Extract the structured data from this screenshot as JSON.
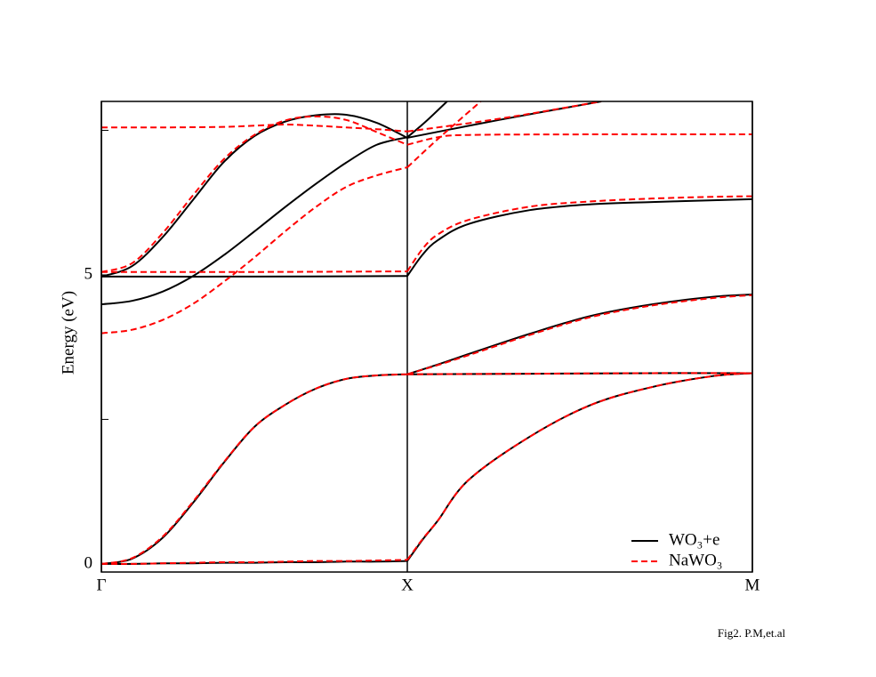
{
  "chart_data": {
    "type": "band-structure",
    "ylabel": "Energy (eV)",
    "annotation": "Fig2. P.M,et.al",
    "xlim": [
      0,
      2.128
    ],
    "ylim": [
      -0.14,
      8.0
    ],
    "yticks": [
      0,
      5
    ],
    "yminorticks": [
      2.5,
      7.5
    ],
    "xticks": [
      {
        "value": 0,
        "label": "Γ"
      },
      {
        "value": 1.0,
        "label": "X"
      },
      {
        "value": 2.128,
        "label": "M"
      }
    ],
    "legend": "lower right",
    "series": [
      {
        "name": "WO₃+e",
        "color": "#000000",
        "dashed": false,
        "bands": [
          {
            "x": [
              0,
              0.1,
              0.2,
              0.3,
              0.4,
              0.5,
              0.6,
              0.7,
              0.8,
              0.9,
              1.0
            ],
            "values": [
              0,
              0,
              0.01,
              0.01,
              0.02,
              0.02,
              0.03,
              0.03,
              0.04,
              0.04,
              0.05
            ]
          },
          {
            "x": [
              1.0,
              1.05,
              1.1,
              1.2,
              1.4,
              1.6,
              1.8,
              2.0,
              2.128
            ],
            "values": [
              0.05,
              0.42,
              0.75,
              1.45,
              2.2,
              2.75,
              3.06,
              3.25,
              3.3
            ]
          },
          {
            "x": [
              0,
              0.1,
              0.2,
              0.3,
              0.4,
              0.5,
              0.6,
              0.7,
              0.8,
              0.9,
              1.0
            ],
            "values": [
              0,
              0.09,
              0.45,
              1.06,
              1.75,
              2.37,
              2.75,
              3.03,
              3.2,
              3.26,
              3.28
            ]
          },
          {
            "x": [
              1.0,
              1.4,
              1.8,
              2.128
            ],
            "values": [
              3.28,
              3.29,
              3.3,
              3.3
            ]
          },
          {
            "x": [
              1.0,
              1.1,
              1.2,
              1.4,
              1.6,
              1.8,
              2.0,
              2.128
            ],
            "values": [
              3.28,
              3.45,
              3.63,
              3.98,
              4.29,
              4.49,
              4.62,
              4.66
            ]
          },
          {
            "x": [
              0,
              0.5,
              1.0
            ],
            "values": [
              4.97,
              4.97,
              4.98
            ]
          },
          {
            "x": [
              1.0,
              1.05,
              1.1,
              1.2,
              1.4,
              1.6,
              1.8,
              2.0,
              2.128
            ],
            "values": [
              4.98,
              5.35,
              5.6,
              5.88,
              6.12,
              6.22,
              6.26,
              6.29,
              6.31
            ]
          },
          {
            "x": [
              0,
              0.1,
              0.2,
              0.3,
              0.4,
              0.5,
              0.6,
              0.7,
              0.8,
              0.9,
              1.0
            ],
            "values": [
              4.49,
              4.55,
              4.71,
              4.98,
              5.34,
              5.75,
              6.17,
              6.57,
              6.94,
              7.25,
              7.38
            ]
          },
          {
            "x": [
              1.0,
              1.06,
              1.13
            ],
            "values": [
              7.38,
              7.65,
              8.0
            ]
          },
          {
            "x": [
              0,
              0.1,
              0.2,
              0.3,
              0.4,
              0.5,
              0.6,
              0.7,
              0.8,
              0.9,
              1.0
            ],
            "values": [
              4.97,
              5.15,
              5.65,
              6.3,
              6.95,
              7.4,
              7.65,
              7.76,
              7.77,
              7.63,
              7.37
            ]
          },
          {
            "x": [
              1.0,
              1.3,
              1.634
            ],
            "values": [
              7.37,
              7.68,
              8.0
            ]
          }
        ]
      },
      {
        "name": "NaWO₃",
        "color": "#ff0000",
        "dashed": true,
        "bands": [
          {
            "x": [
              0,
              0.1,
              0.2,
              0.3,
              0.4,
              0.5,
              0.6,
              0.7,
              0.8,
              0.9,
              1.0
            ],
            "values": [
              0,
              0,
              0.01,
              0.02,
              0.03,
              0.03,
              0.04,
              0.05,
              0.05,
              0.06,
              0.07
            ]
          },
          {
            "x": [
              1.0,
              1.05,
              1.1,
              1.2,
              1.4,
              1.6,
              1.8,
              2.0,
              2.128
            ],
            "values": [
              0.07,
              0.43,
              0.75,
              1.45,
              2.2,
              2.75,
              3.06,
              3.25,
              3.3
            ]
          },
          {
            "x": [
              0,
              0.1,
              0.2,
              0.3,
              0.4,
              0.5,
              0.6,
              0.7,
              0.8,
              0.9,
              1.0
            ],
            "values": [
              0,
              0.1,
              0.47,
              1.08,
              1.76,
              2.37,
              2.75,
              3.03,
              3.2,
              3.26,
              3.28
            ]
          },
          {
            "x": [
              1.0,
              1.4,
              1.8,
              2.128
            ],
            "values": [
              3.28,
              3.29,
              3.3,
              3.3
            ]
          },
          {
            "x": [
              1.0,
              1.1,
              1.2,
              1.4,
              1.6,
              1.8,
              2.0,
              2.128
            ],
            "values": [
              3.28,
              3.44,
              3.61,
              3.96,
              4.27,
              4.47,
              4.6,
              4.65
            ]
          },
          {
            "x": [
              0,
              0.5,
              1.0
            ],
            "values": [
              5.05,
              5.05,
              5.06
            ]
          },
          {
            "x": [
              1.0,
              1.05,
              1.1,
              1.2,
              1.4,
              1.6,
              1.8,
              2.0,
              2.128
            ],
            "values": [
              5.06,
              5.45,
              5.7,
              5.95,
              6.18,
              6.27,
              6.32,
              6.35,
              6.36
            ]
          },
          {
            "x": [
              0,
              0.1,
              0.2,
              0.3,
              0.4,
              0.5,
              0.6,
              0.7,
              0.8,
              0.9,
              1.0
            ],
            "values": [
              3.99,
              4.05,
              4.22,
              4.5,
              4.88,
              5.3,
              5.75,
              6.17,
              6.52,
              6.72,
              6.86
            ]
          },
          {
            "x": [
              1.0,
              1.1,
              1.24
            ],
            "values": [
              6.86,
              7.35,
              8.0
            ]
          },
          {
            "x": [
              0,
              0.1,
              0.2,
              0.3,
              0.4,
              0.5,
              0.6,
              0.7,
              0.8,
              0.9,
              1.0
            ],
            "values": [
              5.05,
              5.2,
              5.72,
              6.38,
              7.0,
              7.42,
              7.67,
              7.74,
              7.68,
              7.47,
              7.25
            ]
          },
          {
            "x": [
              1.0,
              1.1,
              1.2,
              1.6,
              2.128
            ],
            "values": [
              7.25,
              7.38,
              7.42,
              7.43,
              7.43
            ]
          },
          {
            "x": [
              0,
              0.2,
              0.4,
              0.5,
              0.6,
              0.7,
              0.8,
              0.9,
              1.0
            ],
            "values": [
              7.55,
              7.55,
              7.56,
              7.58,
              7.6,
              7.58,
              7.55,
              7.52,
              7.48
            ]
          },
          {
            "x": [
              1.0,
              1.3,
              1.634
            ],
            "values": [
              7.48,
              7.7,
              8.0
            ]
          }
        ]
      }
    ]
  }
}
